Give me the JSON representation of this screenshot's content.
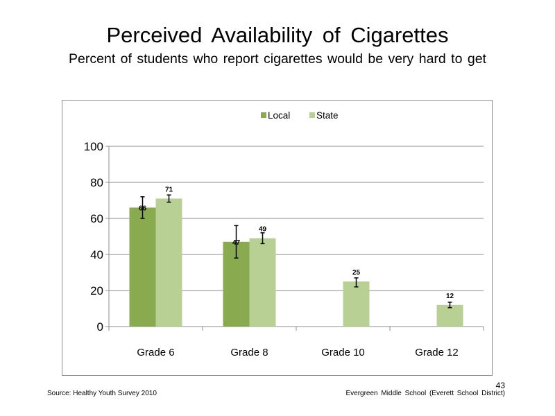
{
  "slide": {
    "title": "Perceived  Availability  of Cigarettes",
    "subtitle": "Percent of students who report cigarettes would be very hard to get",
    "source": "Source: Healthy Youth Survey 2010",
    "school": "Evergreen Middle School (Everett School District)",
    "page_number": "43"
  },
  "chart_data": {
    "type": "bar",
    "title": "",
    "xlabel": "",
    "ylabel": "",
    "categories": [
      "Grade 6",
      "Grade 8",
      "Grade 10",
      "Grade 12"
    ],
    "series": [
      {
        "name": "Local",
        "values": [
          66,
          47,
          null,
          null
        ],
        "error": [
          [
            60,
            72
          ],
          [
            38,
            56
          ],
          null,
          null
        ],
        "color": "#8aaa4f"
      },
      {
        "name": "State",
        "values": [
          71,
          49,
          25,
          12
        ],
        "error": [
          [
            69,
            73
          ],
          [
            46,
            52
          ],
          [
            22,
            27
          ],
          [
            10.5,
            13.5
          ]
        ],
        "color": "#b9d095"
      }
    ],
    "data_labels": [
      [
        "66",
        "47",
        "",
        ""
      ],
      [
        "71",
        "49",
        "25",
        "12"
      ]
    ],
    "ylim": [
      0,
      100
    ],
    "yticks": [
      0,
      20,
      40,
      60,
      80,
      100
    ],
    "grid": true,
    "legend_position": "top-center"
  }
}
